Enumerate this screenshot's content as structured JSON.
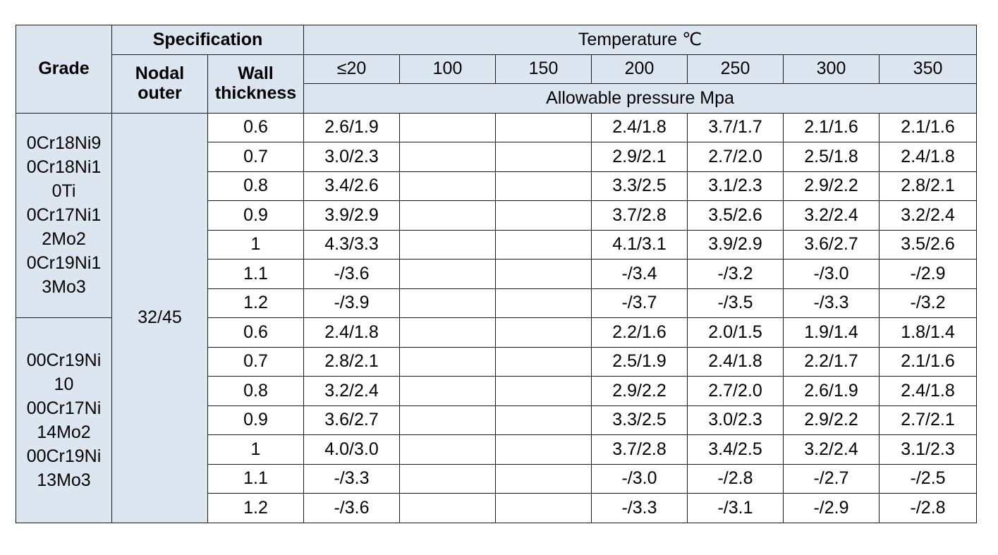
{
  "header": {
    "grade": "Grade",
    "specification": "Specification",
    "nodal_outer_line1": "Nodal",
    "nodal_outer_line2": "outer",
    "wall_line1": "Wall",
    "wall_line2": "thickness",
    "temperature": "Temperature ℃",
    "temps": [
      "≤20",
      "100",
      "150",
      "200",
      "250",
      "300",
      "350"
    ],
    "allowable": "Allowable pressure Mpa"
  },
  "spec_value": "32/45",
  "groups": [
    {
      "grade_lines": [
        "0Cr18Ni9",
        "0Cr18Ni1",
        "0Ti",
        "0Cr17Ni1",
        "2Mo2",
        "0Cr19Ni1",
        "3Mo3"
      ],
      "rows": [
        {
          "wall": "0.6",
          "t20": "2.6/1.9",
          "t100": "",
          "t150": "",
          "t200": "2.4/1.8",
          "t250": "3.7/1.7",
          "t300": "2.1/1.6",
          "t350": "2.1/1.6"
        },
        {
          "wall": "0.7",
          "t20": "3.0/2.3",
          "t100": "",
          "t150": "",
          "t200": "2.9/2.1",
          "t250": "2.7/2.0",
          "t300": "2.5/1.8",
          "t350": "2.4/1.8"
        },
        {
          "wall": "0.8",
          "t20": "3.4/2.6",
          "t100": "",
          "t150": "",
          "t200": "3.3/2.5",
          "t250": "3.1/2.3",
          "t300": "2.9/2.2",
          "t350": "2.8/2.1"
        },
        {
          "wall": "0.9",
          "t20": "3.9/2.9",
          "t100": "",
          "t150": "",
          "t200": "3.7/2.8",
          "t250": "3.5/2.6",
          "t300": "3.2/2.4",
          "t350": "3.2/2.4"
        },
        {
          "wall": "1",
          "t20": "4.3/3.3",
          "t100": "",
          "t150": "",
          "t200": "4.1/3.1",
          "t250": "3.9/2.9",
          "t300": "3.6/2.7",
          "t350": "3.5/2.6"
        },
        {
          "wall": "1.1",
          "t20": "-/3.6",
          "t100": "",
          "t150": "",
          "t200": "-/3.4",
          "t250": "-/3.2",
          "t300": "-/3.0",
          "t350": "-/2.9"
        },
        {
          "wall": "1.2",
          "t20": "-/3.9",
          "t100": "",
          "t150": "",
          "t200": "-/3.7",
          "t250": "-/3.5",
          "t300": "-/3.3",
          "t350": "-/3.2"
        }
      ]
    },
    {
      "grade_lines": [
        "00Cr19Ni",
        "10",
        "00Cr17Ni",
        "14Mo2",
        "00Cr19Ni",
        "13Mo3"
      ],
      "rows": [
        {
          "wall": "0.6",
          "t20": "2.4/1.8",
          "t100": "",
          "t150": "",
          "t200": "2.2/1.6",
          "t250": "2.0/1.5",
          "t300": "1.9/1.4",
          "t350": "1.8/1.4"
        },
        {
          "wall": "0.7",
          "t20": "2.8/2.1",
          "t100": "",
          "t150": "",
          "t200": "2.5/1.9",
          "t250": "2.4/1.8",
          "t300": "2.2/1.7",
          "t350": "2.1/1.6"
        },
        {
          "wall": "0.8",
          "t20": "3.2/2.4",
          "t100": "",
          "t150": "",
          "t200": "2.9/2.2",
          "t250": "2.7/2.0",
          "t300": "2.6/1.9",
          "t350": "2.4/1.8"
        },
        {
          "wall": "0.9",
          "t20": "3.6/2.7",
          "t100": "",
          "t150": "",
          "t200": "3.3/2.5",
          "t250": "3.0/2.3",
          "t300": "2.9/2.2",
          "t350": "2.7/2.1"
        },
        {
          "wall": "1",
          "t20": "4.0/3.0",
          "t100": "",
          "t150": "",
          "t200": "3.7/2.8",
          "t250": "3.4/2.5",
          "t300": "3.2/2.4",
          "t350": "3.1/2.3"
        },
        {
          "wall": "1.1",
          "t20": "-/3.3",
          "t100": "",
          "t150": "",
          "t200": "-/3.0",
          "t250": "-/2.8",
          "t300": "-/2.7",
          "t350": "-/2.5"
        },
        {
          "wall": "1.2",
          "t20": "-/3.6",
          "t100": "",
          "t150": "",
          "t200": "-/3.3",
          "t250": "-/3.1",
          "t300": "-/2.9",
          "t350": "-/2.8"
        }
      ]
    }
  ]
}
